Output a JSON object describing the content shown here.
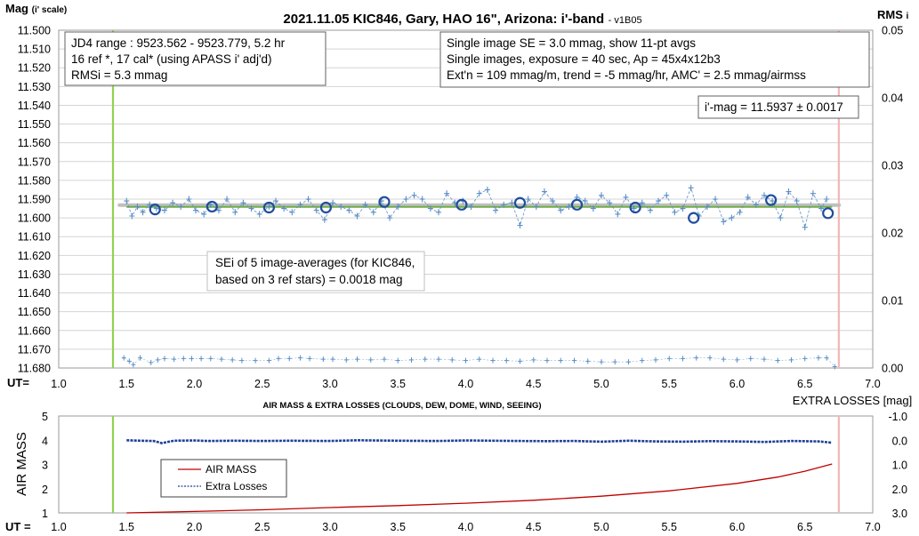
{
  "chart_data": [
    {
      "type": "scatter",
      "title": "2021.11.05 KIC846, Gary, HAO 16\", Arizona: i'-band",
      "version": "- v1B05",
      "ylabel_main": "Mag",
      "ylabel_sub": "(i' scale)",
      "y2label_main": "RMS",
      "y2label_sub": "i",
      "xlabel": "UT=",
      "xlim": [
        1.0,
        7.0
      ],
      "ylim": [
        11.5,
        11.68
      ],
      "y_inverted": true,
      "y2lim": [
        0.0,
        0.05
      ],
      "grid": true,
      "x_ticks": [
        "1.0",
        "1.5",
        "2.0",
        "2.5",
        "3.0",
        "3.5",
        "4.0",
        "4.5",
        "5.0",
        "5.5",
        "6.0",
        "6.5",
        "7.0"
      ],
      "y_ticks": [
        "11.500",
        "11.510",
        "11.520",
        "11.530",
        "11.540",
        "11.550",
        "11.560",
        "11.570",
        "11.580",
        "11.590",
        "11.600",
        "11.610",
        "11.620",
        "11.630",
        "11.640",
        "11.650",
        "11.660",
        "11.670",
        "11.680"
      ],
      "y2_ticks": [
        "0.05",
        "0.04",
        "0.03",
        "0.02",
        "0.01",
        "0.00"
      ],
      "vlines": [
        {
          "x": 1.4,
          "color": "#92d050"
        },
        {
          "x": 6.75,
          "color": "#f4b6b6"
        }
      ],
      "annotations": [
        [
          "JD4 range : 9523.562 - 9523.779, 5.2  hr",
          "16 ref *, 17 cal* (using APASS i' adj'd)",
          "RMSi = 5.3 mmag"
        ],
        [
          "Single image SE = 3.0 mmag, show 11-pt avgs",
          "Single images, exposure = 40 sec, Ap = 45x4x12b3",
          "Ext'n = 109 mmag/m, trend = -5 mmag/hr, AMC' = 2.5 mmag/airmss"
        ],
        [
          "i'-mag = 11.5937 ± 0.0017"
        ],
        [
          "SEi of 5 image-averages (for KIC846,",
          "based on 3 ref stars) = 0.0018 mag"
        ]
      ],
      "series": [
        {
          "name": "single images",
          "style": "plus",
          "color": "#5b8fc6",
          "x": [
            1.5,
            1.54,
            1.58,
            1.62,
            1.67,
            1.72,
            1.78,
            1.84,
            1.9,
            1.96,
            2.01,
            2.07,
            2.12,
            2.18,
            2.24,
            2.3,
            2.36,
            2.42,
            2.48,
            2.55,
            2.6,
            2.66,
            2.72,
            2.78,
            2.84,
            2.9,
            2.96,
            3.02,
            3.08,
            3.14,
            3.2,
            3.26,
            3.32,
            3.38,
            3.44,
            3.5,
            3.56,
            3.62,
            3.68,
            3.74,
            3.8,
            3.86,
            3.92,
            3.98,
            4.04,
            4.1,
            4.16,
            4.22,
            4.28,
            4.34,
            4.4,
            4.46,
            4.52,
            4.58,
            4.64,
            4.7,
            4.76,
            4.82,
            4.88,
            4.94,
            5.0,
            5.06,
            5.12,
            5.18,
            5.24,
            5.3,
            5.36,
            5.42,
            5.48,
            5.54,
            5.6,
            5.66,
            5.72,
            5.78,
            5.84,
            5.9,
            5.96,
            6.02,
            6.08,
            6.14,
            6.2,
            6.26,
            6.32,
            6.38,
            6.44,
            6.5,
            6.56,
            6.62,
            6.66
          ],
          "y": [
            11.591,
            11.599,
            11.594,
            11.597,
            11.593,
            11.595,
            11.596,
            11.592,
            11.594,
            11.59,
            11.596,
            11.598,
            11.593,
            11.596,
            11.59,
            11.597,
            11.592,
            11.595,
            11.598,
            11.594,
            11.591,
            11.595,
            11.597,
            11.593,
            11.59,
            11.596,
            11.601,
            11.592,
            11.594,
            11.596,
            11.599,
            11.593,
            11.597,
            11.591,
            11.6,
            11.594,
            11.59,
            11.588,
            11.59,
            11.595,
            11.597,
            11.587,
            11.592,
            11.591,
            11.594,
            11.587,
            11.585,
            11.596,
            11.593,
            11.592,
            11.604,
            11.59,
            11.594,
            11.586,
            11.591,
            11.596,
            11.594,
            11.589,
            11.591,
            11.595,
            11.588,
            11.592,
            11.598,
            11.589,
            11.595,
            11.592,
            11.596,
            11.591,
            11.588,
            11.597,
            11.595,
            11.584,
            11.599,
            11.594,
            11.59,
            11.602,
            11.6,
            11.597,
            11.589,
            11.593,
            11.588,
            11.591,
            11.6,
            11.586,
            11.591,
            11.605,
            11.587,
            11.595,
            11.59
          ]
        },
        {
          "name": "11-pt avgs",
          "style": "circle",
          "color": "#1f4e9c",
          "x": [
            1.71,
            2.13,
            2.55,
            2.97,
            3.4,
            3.97,
            4.4,
            4.82,
            5.25,
            5.68,
            6.25,
            6.67
          ],
          "y": [
            11.5955,
            11.594,
            11.5945,
            11.5945,
            11.5915,
            11.593,
            11.592,
            11.593,
            11.5945,
            11.6,
            11.5905,
            11.5975
          ]
        },
        {
          "name": "mean level",
          "style": "line",
          "color": "#70ad47",
          "x": [
            1.5,
            6.7
          ],
          "y": [
            11.5937,
            11.5937
          ]
        },
        {
          "name": "RMS",
          "style": "plus-small",
          "color": "#5b8fc6",
          "axis": "y2",
          "x": [
            1.48,
            1.52,
            1.55,
            1.6,
            1.68,
            1.73,
            1.78,
            1.85,
            1.92,
            1.98,
            2.05,
            2.12,
            2.2,
            2.28,
            2.35,
            2.45,
            2.55,
            2.62,
            2.7,
            2.78,
            2.85,
            2.95,
            3.02,
            3.12,
            3.2,
            3.3,
            3.4,
            3.5,
            3.6,
            3.7,
            3.8,
            3.9,
            4.0,
            4.1,
            4.2,
            4.3,
            4.4,
            4.5,
            4.6,
            4.7,
            4.8,
            4.9,
            5.0,
            5.1,
            5.2,
            5.3,
            5.4,
            5.5,
            5.6,
            5.7,
            5.8,
            5.9,
            6.0,
            6.1,
            6.2,
            6.3,
            6.4,
            6.5,
            6.6,
            6.66,
            6.72
          ],
          "y": [
            0.0015,
            0.001,
            0.0005,
            0.0015,
            0.0008,
            0.0012,
            0.0014,
            0.0013,
            0.0014,
            0.0014,
            0.0014,
            0.0014,
            0.0013,
            0.0012,
            0.0011,
            0.0011,
            0.0011,
            0.0014,
            0.0014,
            0.0015,
            0.0014,
            0.0013,
            0.0013,
            0.0012,
            0.0013,
            0.0012,
            0.0013,
            0.0011,
            0.0012,
            0.0013,
            0.0013,
            0.0012,
            0.0011,
            0.0013,
            0.0011,
            0.0011,
            0.001,
            0.0012,
            0.0011,
            0.0011,
            0.0011,
            0.001,
            0.0009,
            0.0009,
            0.0009,
            0.0011,
            0.0012,
            0.0014,
            0.0014,
            0.0015,
            0.0015,
            0.0013,
            0.0012,
            0.0014,
            0.0013,
            0.0011,
            0.0012,
            0.0014,
            0.0015,
            0.0015,
            0.0002
          ]
        }
      ]
    },
    {
      "type": "line",
      "title": "AIR MASS & EXTRA LOSSES (CLOUDS, DEW, DOME, WIND, SEEING)",
      "ylabel": "AIR MASS",
      "y2label": "EXTRA LOSSES [mag]",
      "xlabel": "UT =",
      "xlim": [
        1.0,
        7.0
      ],
      "ylim": [
        1,
        5
      ],
      "y2lim": [
        -1.0,
        3.0
      ],
      "y2_inverted": true,
      "x_ticks": [
        "1.0",
        "1.5",
        "2.0",
        "2.5",
        "3.0",
        "3.5",
        "4.0",
        "4.5",
        "5.0",
        "5.5",
        "6.0",
        "6.5",
        "7.0"
      ],
      "y_ticks": [
        "5",
        "4",
        "3",
        "2",
        "1"
      ],
      "y2_ticks": [
        "-1.0",
        "0.0",
        "1.0",
        "2.0",
        "3.0"
      ],
      "vlines": [
        {
          "x": 1.4,
          "color": "#92d050"
        },
        {
          "x": 6.75,
          "color": "#f4b6b6"
        }
      ],
      "legend_position": "left",
      "series": [
        {
          "name": "AIR MASS",
          "color": "#c00000",
          "axis": "y",
          "x": [
            1.5,
            2.0,
            2.5,
            3.0,
            3.5,
            4.0,
            4.5,
            5.0,
            5.5,
            6.0,
            6.3,
            6.5,
            6.7
          ],
          "y": [
            1.0,
            1.06,
            1.13,
            1.22,
            1.3,
            1.4,
            1.52,
            1.69,
            1.91,
            2.22,
            2.48,
            2.72,
            3.02
          ]
        },
        {
          "name": "Extra Losses",
          "color": "#1f3f99",
          "axis": "y2",
          "x": [
            1.5,
            1.6,
            1.7,
            1.76,
            1.85,
            2.0,
            2.1,
            2.3,
            2.5,
            2.7,
            3.0,
            3.2,
            3.5,
            3.8,
            4.0,
            4.2,
            4.4,
            4.6,
            4.8,
            5.0,
            5.2,
            5.4,
            5.6,
            5.8,
            6.0,
            6.2,
            6.4,
            6.6,
            6.7
          ],
          "y": [
            0.0,
            0.02,
            0.03,
            0.12,
            0.02,
            0.01,
            0.03,
            0.02,
            0.03,
            0.02,
            0.03,
            0.0,
            0.02,
            0.03,
            0.01,
            0.02,
            0.03,
            0.04,
            0.03,
            0.06,
            0.02,
            0.05,
            0.06,
            0.04,
            0.05,
            0.07,
            0.03,
            0.05,
            0.1
          ]
        }
      ]
    }
  ]
}
